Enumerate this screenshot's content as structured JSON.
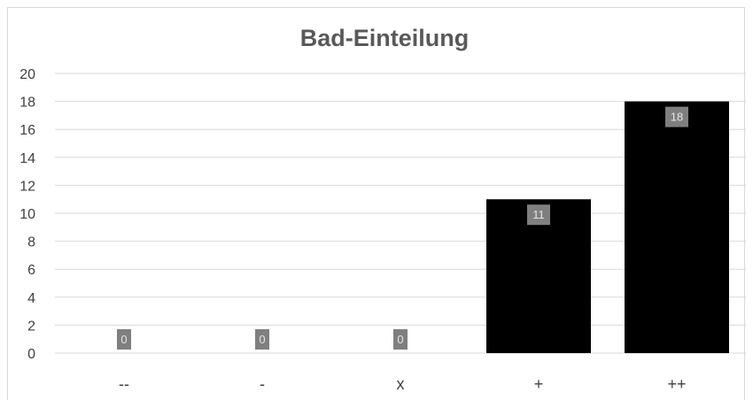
{
  "chart_data": {
    "type": "bar",
    "title": "Bad-Einteilung",
    "xlabel": "",
    "ylabel": "",
    "categories": [
      "--",
      "-",
      "x",
      "+",
      "++"
    ],
    "values": [
      0,
      0,
      0,
      11,
      18
    ],
    "value_labels": [
      "0",
      "0",
      "0",
      "11",
      "18"
    ],
    "ylim": [
      0,
      20
    ],
    "yticks": [
      "0",
      "2",
      "4",
      "6",
      "8",
      "10",
      "12",
      "14",
      "16",
      "18",
      "20"
    ],
    "grid": true,
    "legend": "none",
    "colors": {
      "bar": "#000000",
      "label_box": "#7f7f7f",
      "label_text": "#e6e6e6",
      "grid": "#d9d9d9"
    }
  }
}
